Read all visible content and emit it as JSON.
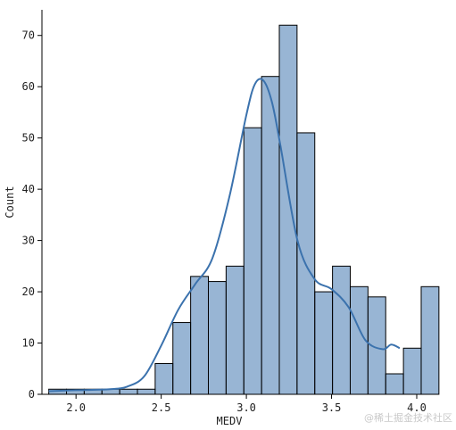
{
  "chart_data": {
    "type": "bar",
    "subtype": "histogram",
    "xlabel": "MEDV",
    "ylabel": "Count",
    "xlim": [
      1.8,
      4.0
    ],
    "ylim": [
      0,
      75
    ],
    "x_ticks": [
      "2.0",
      "2.5",
      "3.0",
      "3.5",
      "4.0"
    ],
    "x_tick_values": [
      2.0,
      2.5,
      3.0,
      3.5,
      4.0
    ],
    "y_ticks": [
      0,
      10,
      20,
      30,
      40,
      50,
      60,
      70
    ],
    "bin_start": 1.84,
    "bin_width": 0.1041,
    "values": [
      1,
      1,
      1,
      1,
      1,
      1,
      6,
      14,
      23,
      22,
      25,
      52,
      62,
      72,
      51,
      20,
      25,
      21,
      19,
      4,
      9,
      21
    ],
    "kde": {
      "x": [
        1.84,
        2.0,
        2.2,
        2.3,
        2.4,
        2.5,
        2.6,
        2.7,
        2.8,
        2.9,
        3.0,
        3.05,
        3.1,
        3.15,
        3.2,
        3.3,
        3.4,
        3.5,
        3.6,
        3.7,
        3.8,
        3.85,
        3.9
      ],
      "y": [
        0.6,
        0.8,
        1.0,
        1.5,
        3.5,
        9.5,
        16.5,
        21.5,
        26.5,
        38.5,
        54.5,
        60.5,
        61.2,
        57.0,
        48.5,
        30.0,
        22.5,
        20.5,
        17.0,
        10.5,
        8.8,
        9.7,
        9.0
      ]
    },
    "bar_color": "#4479b0",
    "kde_color": "#3b72ad",
    "grid": false,
    "legend": "none"
  },
  "watermark": "@稀土掘金技术社区"
}
